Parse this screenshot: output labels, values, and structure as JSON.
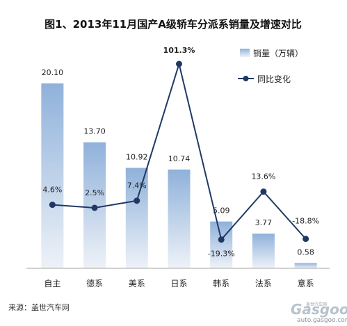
{
  "chart_data": {
    "type": "bar",
    "title": "图1、2013年11月国产A级轿车分派系销量及增速对比",
    "categories": [
      "自主",
      "德系",
      "美系",
      "日系",
      "韩系",
      "法系",
      "意系"
    ],
    "series": [
      {
        "name": "销量（万辆）",
        "type": "bar",
        "values": [
          20.1,
          13.7,
          10.92,
          10.74,
          5.09,
          3.77,
          0.58
        ],
        "labels": [
          "20.10",
          "13.70",
          "10.92",
          "10.74",
          "5.09",
          "3.77",
          "0.58"
        ]
      },
      {
        "name": "同比变化",
        "type": "line",
        "values": [
          4.6,
          2.5,
          7.4,
          101.3,
          -19.3,
          13.6,
          -18.8
        ],
        "labels": [
          "4.6%",
          "2.5%",
          "7.4%",
          "101.3%",
          "-19.3%",
          "13.6%",
          "-18.8%"
        ]
      }
    ],
    "legend_position": "top-right",
    "grid": false,
    "colors": {
      "bar_top": "#8fb1da",
      "bar_bottom": "#eef2f8",
      "line": "#1f3864",
      "negative_label": "#e0302e",
      "axis": "#a6a6a6"
    }
  },
  "footer": {
    "source": "来源：盖世汽车网"
  },
  "watermark": {
    "brand": "Gasgoo",
    "url": "auto.gasgoo.com",
    "small": "盖世汽车网"
  }
}
